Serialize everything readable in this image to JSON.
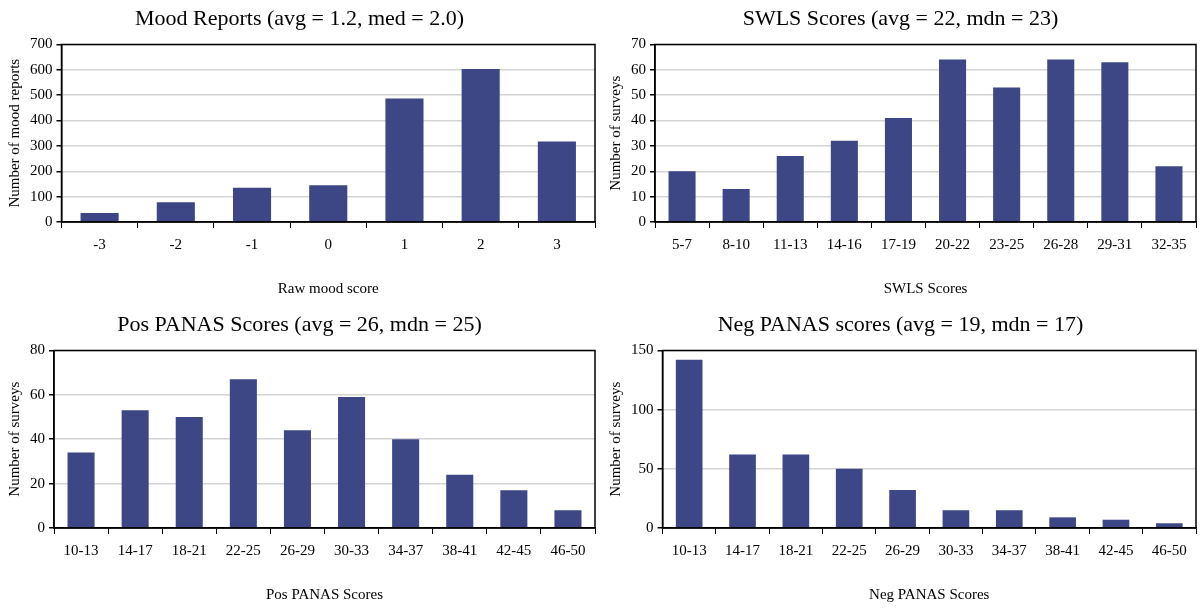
{
  "chart_data": [
    {
      "type": "bar",
      "title": "Mood Reports (avg = 1.2, med = 2.0)",
      "xlabel": "Raw mood score",
      "ylabel": "Number of mood reports",
      "categories": [
        "-3",
        "-2",
        "-1",
        "0",
        "1",
        "2",
        "3"
      ],
      "values": [
        35,
        78,
        135,
        145,
        487,
        603,
        317
      ],
      "color": "#3d4785",
      "ylim": [
        0,
        700
      ],
      "yticks": [
        0,
        100,
        200,
        300,
        400,
        500,
        600,
        700
      ],
      "grid": "y",
      "legend": false
    },
    {
      "type": "bar",
      "title": "SWLS Scores (avg = 22, mdn = 23)",
      "xlabel": "SWLS Scores",
      "ylabel": "Number of surveys",
      "categories": [
        "5-7",
        "8-10",
        "11-13",
        "14-16",
        "17-19",
        "20-22",
        "23-25",
        "26-28",
        "29-31",
        "32-35"
      ],
      "values": [
        20,
        13,
        26,
        32,
        41,
        64,
        53,
        64,
        63,
        22
      ],
      "color": "#3d4785",
      "ylim": [
        0,
        70
      ],
      "yticks": [
        0,
        10,
        20,
        30,
        40,
        50,
        60,
        70
      ],
      "grid": "y",
      "legend": false
    },
    {
      "type": "bar",
      "title": "Pos PANAS Scores (avg = 26, mdn = 25)",
      "xlabel": "Pos PANAS Scores",
      "ylabel": "Number of surveys",
      "categories": [
        "10-13",
        "14-17",
        "18-21",
        "22-25",
        "26-29",
        "30-33",
        "34-37",
        "38-41",
        "42-45",
        "46-50"
      ],
      "values": [
        34,
        53,
        50,
        67,
        44,
        59,
        40,
        24,
        17,
        8
      ],
      "color": "#3d4785",
      "ylim": [
        0,
        80
      ],
      "yticks": [
        0,
        20,
        40,
        60,
        80
      ],
      "grid": "y",
      "legend": false
    },
    {
      "type": "bar",
      "title": "Neg PANAS scores (avg = 19, mdn = 17)",
      "xlabel": "Neg PANAS Scores",
      "ylabel": "Number of surveys",
      "categories": [
        "10-13",
        "14-17",
        "18-21",
        "22-25",
        "26-29",
        "30-33",
        "34-37",
        "38-41",
        "42-45",
        "46-50"
      ],
      "values": [
        142,
        62,
        62,
        50,
        32,
        15,
        15,
        9,
        7,
        4
      ],
      "color": "#3d4785",
      "ylim": [
        0,
        150
      ],
      "yticks": [
        0,
        50,
        100,
        150
      ],
      "grid": "y",
      "legend": false
    }
  ]
}
